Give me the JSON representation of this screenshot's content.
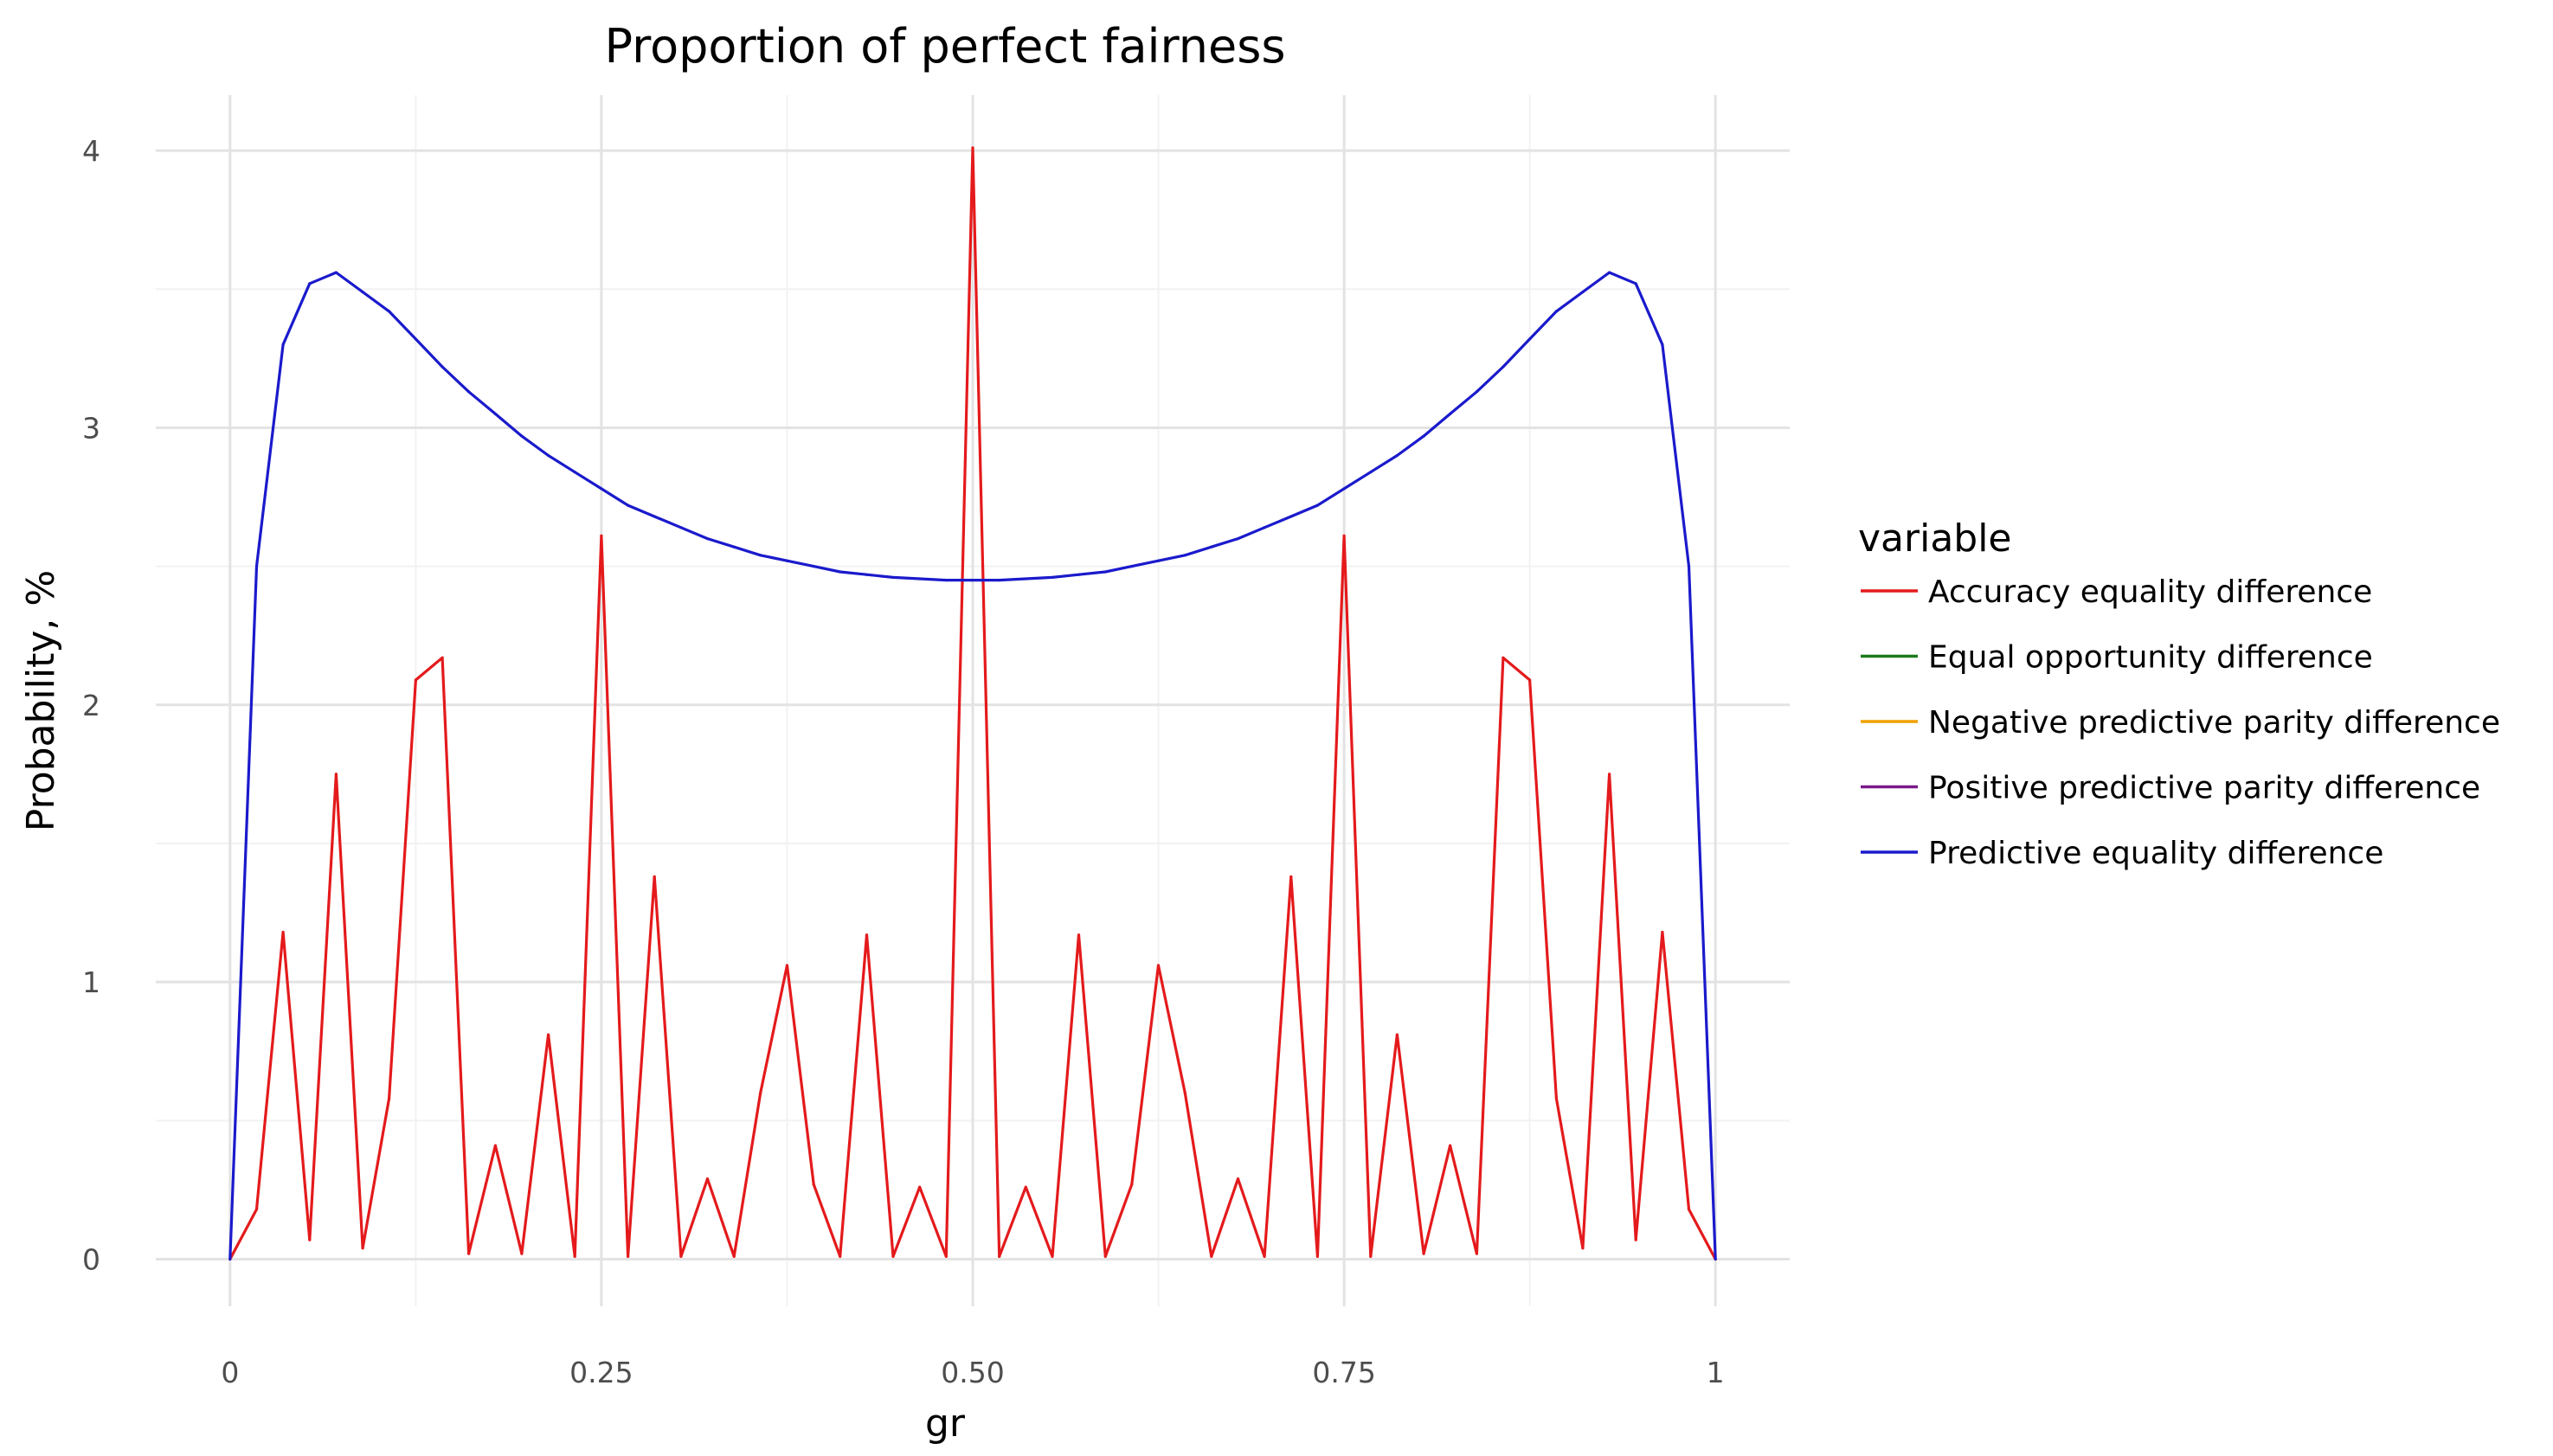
{
  "chart_data": {
    "type": "line",
    "title": "Proportion of perfect fairness",
    "xlabel": "gr",
    "ylabel": "Probability, %",
    "xlim": [
      -0.05,
      1.05
    ],
    "ylim": [
      -0.17,
      4.2
    ],
    "x_ticks": [
      0,
      0.25,
      0.5,
      0.75,
      1
    ],
    "x_tick_labels": [
      "0",
      "0.25",
      "0.50",
      "0.75",
      "1"
    ],
    "y_ticks": [
      0,
      1,
      2,
      3,
      4
    ],
    "y_tick_labels": [
      "0",
      "1",
      "2",
      "3",
      "4"
    ],
    "grid": true,
    "legend": {
      "title": "variable",
      "position": "right",
      "entries": [
        {
          "label": "Accuracy equality difference",
          "color": "#e41a1c"
        },
        {
          "label": "Equal opportunity difference",
          "color": "#1a7a1a"
        },
        {
          "label": "Negative predictive parity difference",
          "color": "#f0a000"
        },
        {
          "label": "Positive predictive parity difference",
          "color": "#7a1a8a"
        },
        {
          "label": "Predictive equality difference",
          "color": "#1a1acc"
        }
      ]
    },
    "series": [
      {
        "name": "Accuracy equality difference",
        "color": "#e41a1c",
        "x": [
          0,
          0.0179,
          0.0357,
          0.0536,
          0.0714,
          0.0893,
          0.1071,
          0.125,
          0.1429,
          0.1607,
          0.1786,
          0.1964,
          0.2143,
          0.2321,
          0.25,
          0.2679,
          0.2857,
          0.3036,
          0.3214,
          0.3393,
          0.3571,
          0.375,
          0.3929,
          0.4107,
          0.4286,
          0.4464,
          0.4643,
          0.4821,
          0.5,
          0.5179,
          0.5357,
          0.5536,
          0.5714,
          0.5893,
          0.6071,
          0.625,
          0.6429,
          0.6607,
          0.6786,
          0.6964,
          0.7143,
          0.7321,
          0.75,
          0.7679,
          0.7857,
          0.8036,
          0.8214,
          0.8393,
          0.8571,
          0.875,
          0.8929,
          0.9107,
          0.9286,
          0.9464,
          0.9643,
          0.9821,
          1.0
        ],
        "values": [
          0,
          0.18,
          1.18,
          0.07,
          1.75,
          0.04,
          0.58,
          2.09,
          2.17,
          0.02,
          0.41,
          0.02,
          0.81,
          0.01,
          2.61,
          0.01,
          1.38,
          0.01,
          0.29,
          0.01,
          0.6,
          1.06,
          0.27,
          0.01,
          1.17,
          0.01,
          0.26,
          0.01,
          4.01,
          0.01,
          0.26,
          0.01,
          1.17,
          0.01,
          0.27,
          1.06,
          0.6,
          0.01,
          0.29,
          0.01,
          1.38,
          0.01,
          2.61,
          0.01,
          0.81,
          0.02,
          0.41,
          0.02,
          2.17,
          2.09,
          0.58,
          0.04,
          1.75,
          0.07,
          1.18,
          0.18,
          0
        ]
      },
      {
        "name": "Predictive equality difference",
        "color": "#1a1acc",
        "x": [
          0,
          0.0179,
          0.0357,
          0.0536,
          0.0714,
          0.0893,
          0.1071,
          0.125,
          0.1429,
          0.1607,
          0.1786,
          0.1964,
          0.2143,
          0.2321,
          0.25,
          0.2679,
          0.2857,
          0.3036,
          0.3214,
          0.3393,
          0.3571,
          0.375,
          0.3929,
          0.4107,
          0.4286,
          0.4464,
          0.4643,
          0.4821,
          0.5,
          0.5179,
          0.5357,
          0.5536,
          0.5714,
          0.5893,
          0.6071,
          0.625,
          0.6429,
          0.6607,
          0.6786,
          0.6964,
          0.7143,
          0.7321,
          0.75,
          0.7679,
          0.7857,
          0.8036,
          0.8214,
          0.8393,
          0.8571,
          0.875,
          0.8929,
          0.9107,
          0.9286,
          0.9464,
          0.9643,
          0.9821,
          1.0
        ],
        "values": [
          0,
          2.5,
          3.3,
          3.52,
          3.56,
          3.49,
          3.42,
          3.32,
          3.22,
          3.13,
          3.05,
          2.97,
          2.9,
          2.84,
          2.78,
          2.72,
          2.68,
          2.64,
          2.6,
          2.57,
          2.54,
          2.52,
          2.5,
          2.48,
          2.47,
          2.46,
          2.455,
          2.45,
          2.45,
          2.45,
          2.455,
          2.46,
          2.47,
          2.48,
          2.5,
          2.52,
          2.54,
          2.57,
          2.6,
          2.64,
          2.68,
          2.72,
          2.78,
          2.84,
          2.9,
          2.97,
          3.05,
          3.13,
          3.22,
          3.32,
          3.42,
          3.49,
          3.56,
          3.52,
          3.3,
          2.5,
          0
        ]
      }
    ]
  }
}
